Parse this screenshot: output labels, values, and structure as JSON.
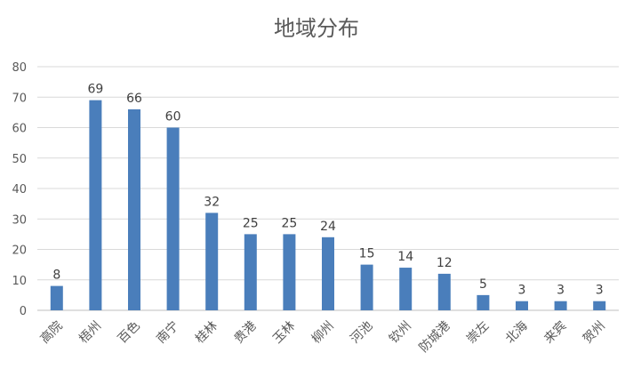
{
  "chart_data": {
    "type": "bar",
    "title": "地域分布",
    "categories": [
      "高院",
      "梧州",
      "百色",
      "南宁",
      "桂林",
      "贵港",
      "玉林",
      "柳州",
      "河池",
      "钦州",
      "防城港",
      "崇左",
      "北海",
      "来宾",
      "贺州"
    ],
    "values": [
      8,
      69,
      66,
      60,
      32,
      25,
      25,
      24,
      15,
      14,
      12,
      5,
      3,
      3,
      3
    ],
    "ylim": [
      0,
      80
    ],
    "yticks": [
      0,
      10,
      20,
      30,
      40,
      50,
      60,
      70,
      80
    ],
    "grid": true,
    "legend": "none",
    "bar_color": "#4a7ebb"
  }
}
